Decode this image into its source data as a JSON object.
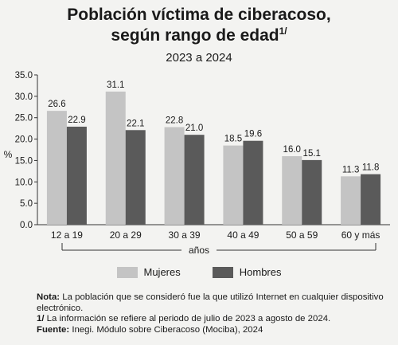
{
  "header": {
    "title_line1": "Población víctima de ciberacoso,",
    "title_line2": "según rango de edad",
    "title_sup": "1/",
    "subtitle": "2023 a 2024"
  },
  "colors": {
    "mujeres": "#c4c4c4",
    "hombres": "#5a5a5a",
    "background": "#f3f3f1"
  },
  "chart_data": {
    "type": "bar",
    "categories": [
      "12 a 19",
      "20 a 29",
      "30 a 39",
      "40 a 49",
      "50 a 59",
      "60 y más"
    ],
    "series": [
      {
        "name": "Mujeres",
        "values": [
          26.6,
          31.1,
          22.8,
          18.5,
          16.0,
          11.3
        ]
      },
      {
        "name": "Hombres",
        "values": [
          22.9,
          22.1,
          21.0,
          19.6,
          15.1,
          11.8
        ]
      }
    ],
    "value_labels": [
      [
        "26.6",
        "31.1",
        "22.8",
        "18.5",
        "16.0",
        "11.3"
      ],
      [
        "22.9",
        "22.1",
        "21.0",
        "19.6",
        "15.1",
        "11.8"
      ]
    ],
    "ylim": [
      0,
      35
    ],
    "yticks": [
      "0.0",
      "5.0",
      "10.0",
      "15.0",
      "20.0",
      "25.0",
      "30.0",
      "35.0"
    ],
    "ylabel": "%",
    "xlabel": "años",
    "grid": false,
    "legend_position": "bottom"
  },
  "notes": {
    "nota_label": "Nota:",
    "nota_text": "La población que se consideró fue la que utilizó Internet en cualquier dispositivo electrónico.",
    "ref_label": "1/",
    "ref_text": "La información se refiere al periodo de julio de 2023 a agosto de 2024.",
    "fuente_label": "Fuente:",
    "fuente_text": "Inegi. Módulo sobre Ciberacoso (Mociba), 2024"
  }
}
